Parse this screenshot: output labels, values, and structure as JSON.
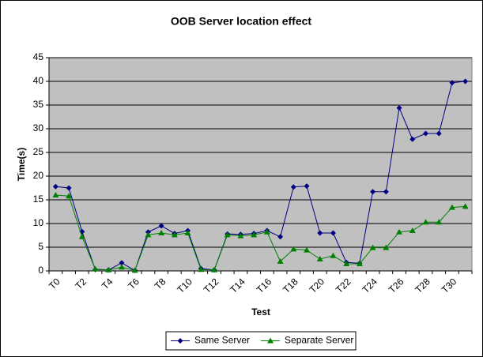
{
  "chart_data": {
    "type": "line",
    "title": "OOB Server location effect",
    "x_label": "Test",
    "y_label": "Time(s)",
    "categories": [
      "T0",
      null,
      "T2",
      null,
      "T4",
      null,
      "T6",
      null,
      "T8",
      null,
      "T10",
      null,
      "T12",
      null,
      "T14",
      null,
      "T16",
      null,
      "T18",
      null,
      "T20",
      null,
      "T22",
      null,
      "T24",
      null,
      "T26",
      null,
      "T28",
      null,
      "T30",
      null
    ],
    "series": [
      {
        "name": "Same Server",
        "color": "#000080",
        "marker": "diamond",
        "values": [
          17.8,
          17.5,
          8.3,
          0.3,
          0.2,
          1.7,
          0.1,
          8.2,
          9.5,
          7.9,
          8.5,
          0.5,
          0.2,
          7.8,
          7.7,
          7.9,
          8.5,
          7.2,
          17.7,
          17.9,
          8.0,
          8.0,
          1.8,
          1.6,
          16.7,
          16.7,
          34.4,
          27.8,
          29.0,
          29.0,
          39.7,
          40.0
        ]
      },
      {
        "name": "Separate Server",
        "color": "#008000",
        "marker": "triangle",
        "values": [
          16.0,
          15.8,
          7.2,
          0.4,
          0.2,
          0.8,
          0.1,
          7.6,
          8.0,
          7.6,
          8.0,
          0.3,
          0.2,
          7.6,
          7.4,
          7.6,
          8.2,
          2.0,
          4.6,
          4.4,
          2.5,
          3.2,
          1.5,
          1.5,
          4.9,
          4.9,
          8.2,
          8.5,
          10.3,
          10.3,
          13.4,
          13.6
        ]
      }
    ],
    "ylim": [
      0,
      45
    ],
    "yticks": [
      0,
      5,
      10,
      15,
      20,
      25,
      30,
      35,
      40,
      45
    ],
    "grid": true,
    "legend": "bottom",
    "plot_background": "#c0c0c0"
  }
}
